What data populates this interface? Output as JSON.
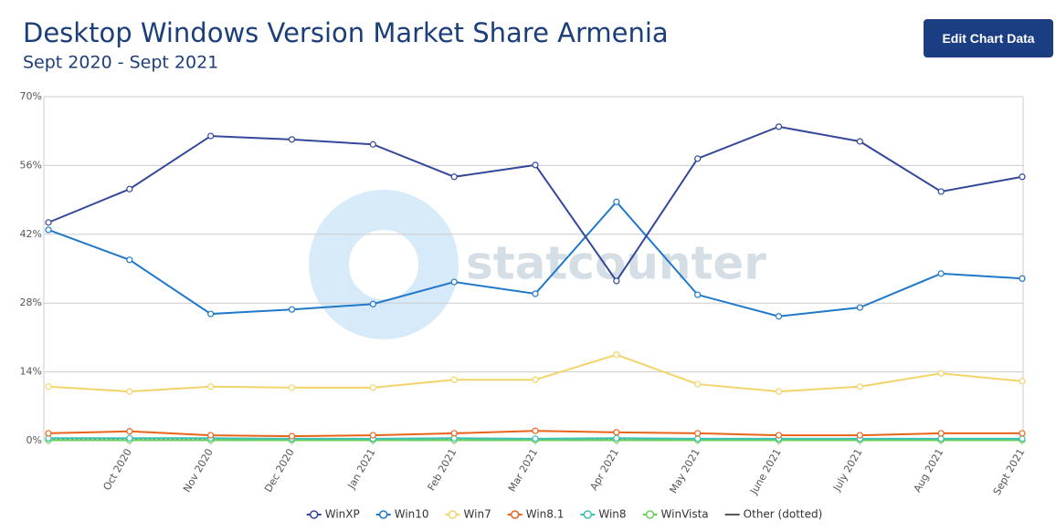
{
  "chart_data": {
    "type": "line",
    "title": "Desktop Windows Version Market Share Armenia",
    "subtitle": "Sept 2020 - Sept 2021",
    "watermark": "statcounter",
    "categories": [
      null,
      "Oct 2020",
      "Nov 2020",
      "Dec 2020",
      "Jan 2021",
      "Feb 2021",
      "Mar 2021",
      "Apr 2021",
      "May 2021",
      "June 2021",
      "July 2021",
      "Aug 2021",
      "Sept 2021"
    ],
    "ylim": [
      0,
      70
    ],
    "yticks": [
      {
        "value": 0,
        "label": "0%"
      },
      {
        "value": 14,
        "label": "14%"
      },
      {
        "value": 28,
        "label": "28%"
      },
      {
        "value": 42,
        "label": "42%"
      },
      {
        "value": 56,
        "label": "56%"
      },
      {
        "value": 70,
        "label": "70%"
      }
    ],
    "grid": true,
    "series": [
      {
        "name": "WinXP",
        "color": "#34489a",
        "values": [
          44.4,
          51.2,
          62.0,
          61.3,
          60.3,
          53.7,
          56.1,
          32.5,
          57.4,
          63.9,
          60.9,
          50.7,
          53.7
        ]
      },
      {
        "name": "Win10",
        "color": "#1f78c8",
        "values": [
          42.9,
          36.8,
          25.8,
          26.7,
          27.8,
          32.3,
          29.9,
          48.6,
          29.7,
          25.3,
          27.1,
          34.0,
          33.0
        ]
      },
      {
        "name": "Win7",
        "color": "#f2d46a",
        "values": [
          11.0,
          10.0,
          11.0,
          10.8,
          10.8,
          12.4,
          12.4,
          17.5,
          11.5,
          10.0,
          11.0,
          13.7,
          12.1
        ]
      },
      {
        "name": "Win8.1",
        "color": "#e8641b",
        "values": [
          1.5,
          1.9,
          1.1,
          0.9,
          1.1,
          1.5,
          2.0,
          1.7,
          1.5,
          1.1,
          1.1,
          1.5,
          1.5
        ]
      },
      {
        "name": "Win8",
        "color": "#3ec1b4",
        "values": [
          0.5,
          0.5,
          0.5,
          0.4,
          0.4,
          0.5,
          0.4,
          0.5,
          0.4,
          0.4,
          0.4,
          0.4,
          0.4
        ]
      },
      {
        "name": "WinVista",
        "color": "#6ad05a",
        "values": [
          0.1,
          0.1,
          0.1,
          0.1,
          0.1,
          0.1,
          0.1,
          0.1,
          0.1,
          0.1,
          0.1,
          0.1,
          0.1
        ]
      },
      {
        "name": "Other (dotted)",
        "color": "#555555",
        "style": "dotted",
        "values": [
          0.2,
          0.2,
          0.2,
          0.2,
          0.2,
          0.2,
          0.2,
          0.2,
          0.2,
          0.2,
          0.2,
          0.2,
          0.2
        ]
      }
    ]
  },
  "ui": {
    "button": "Edit Chart Data"
  }
}
